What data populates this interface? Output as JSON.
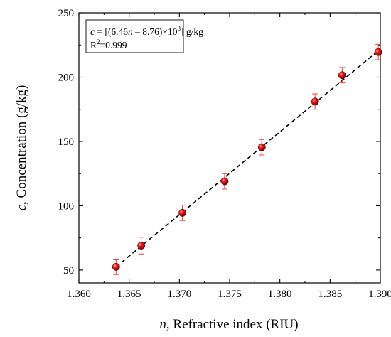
{
  "chart_data": {
    "type": "scatter",
    "xlabel_var": "n",
    "xlabel_text": ", Refractive index (RIU)",
    "ylabel_var": "c",
    "ylabel_text": ", Concentration (g/kg)",
    "xlim": [
      1.36,
      1.39
    ],
    "ylim": [
      40,
      250
    ],
    "x_ticks": [
      1.36,
      1.365,
      1.37,
      1.375,
      1.38,
      1.385,
      1.39
    ],
    "x_tick_labels": [
      "1.360",
      "1.365",
      "1.370",
      "1.375",
      "1.380",
      "1.385",
      "1.390"
    ],
    "y_ticks": [
      50,
      100,
      150,
      200,
      250
    ],
    "y_tick_labels": [
      "50",
      "100",
      "150",
      "200",
      "250"
    ],
    "grid": false,
    "legend_position": "top-left",
    "series": [
      {
        "x": [
          1.3637,
          1.3662,
          1.3703,
          1.3745,
          1.3782,
          1.3835,
          1.3862,
          1.3898
        ],
        "y": [
          52.5,
          69.0,
          94.5,
          119.0,
          145.5,
          181.0,
          201.5,
          219.5
        ],
        "y_error": [
          6.0,
          6.5,
          6.0,
          6.0,
          6.0,
          6.0,
          6.0,
          6.0
        ],
        "marker_color": "#e00000",
        "errorbar_color": "#f04040"
      }
    ],
    "fit_line": {
      "x": [
        1.3637,
        1.3898
      ],
      "y": [
        52.5,
        220.5
      ],
      "style": "dashed",
      "color": "#000000"
    },
    "annotation": {
      "equation_var": "c",
      "equation_body": " = [(6.46",
      "equation_n": "n",
      "equation_rest": " – 8.76)×10",
      "equation_exp": "3",
      "equation_unit": "] g/kg",
      "r2_base": "R",
      "r2_exp": "2",
      "r2_value": "=0.999"
    }
  }
}
